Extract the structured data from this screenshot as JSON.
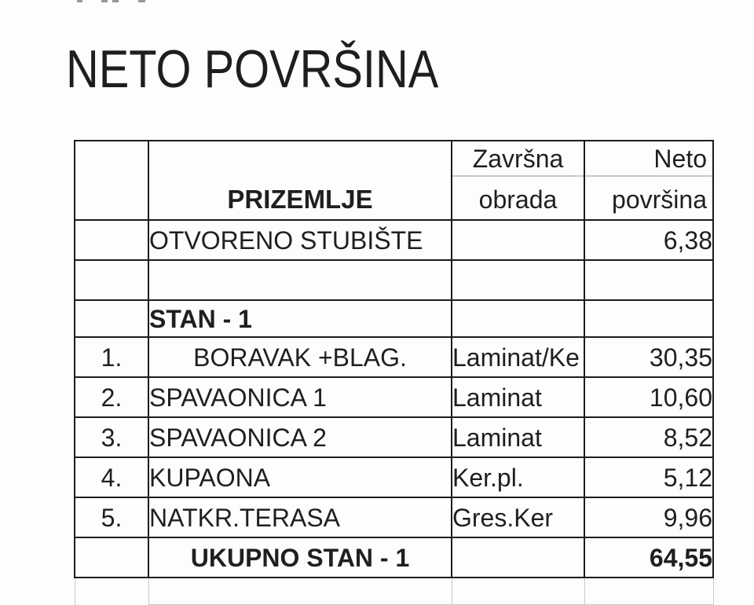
{
  "title": "NETO POVRŠINA",
  "colors": {
    "text": "#1f1f1f",
    "table_border": "#1c1c1c",
    "faint_border": "#c9c9c9",
    "background": "#fdfdfd"
  },
  "table": {
    "header": {
      "floor": "PRIZEMLJE",
      "finish_line1": "Završna",
      "finish_line2": "obrada",
      "area_line1": "Neto",
      "area_line2": "površina"
    },
    "rows": [
      {
        "num": "",
        "name": "OTVORENO STUBIŠTE",
        "finish": "",
        "area": "6,38"
      },
      {
        "num": "",
        "name": "",
        "finish": "",
        "area": ""
      },
      {
        "num": "",
        "name": "STAN - 1",
        "finish": "",
        "area": ""
      },
      {
        "num": "1.",
        "name": "BORAVAK +BLAG.",
        "finish": "Laminat/Ke",
        "area": "30,35"
      },
      {
        "num": "2.",
        "name": "SPAVAONICA 1",
        "finish": "Laminat",
        "area": "10,60"
      },
      {
        "num": "3.",
        "name": "SPAVAONICA 2",
        "finish": "Laminat",
        "area": "8,52"
      },
      {
        "num": "4.",
        "name": "KUPAONA",
        "finish": "Ker.pl.",
        "area": "5,12"
      },
      {
        "num": "5.",
        "name": "NATKR.TERASA",
        "finish": "Gres.Ker",
        "area": "9,96"
      },
      {
        "num": "",
        "name": "UKUPNO STAN - 1",
        "finish": "",
        "area": "64,55"
      }
    ]
  }
}
